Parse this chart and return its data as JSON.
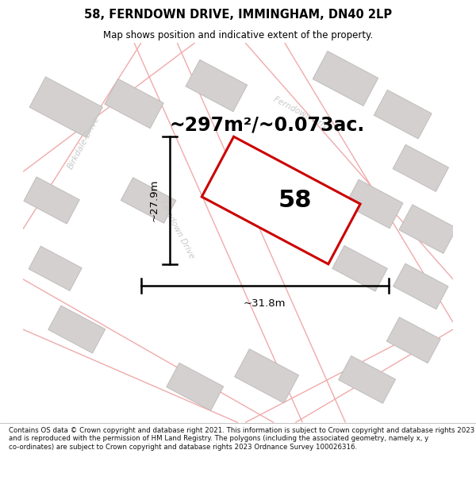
{
  "title": "58, FERNDOWN DRIVE, IMMINGHAM, DN40 2LP",
  "subtitle": "Map shows position and indicative extent of the property.",
  "area_text": "~297m²/~0.073ac.",
  "number_label": "58",
  "dim_width": "~31.8m",
  "dim_height": "~27.9m",
  "map_bg": "#eeecec",
  "building_color": "#d4d0d0",
  "building_edge": "#c0bcbc",
  "road_line_color": "#f0aaaa",
  "property_color": "#ffffff",
  "property_edge": "#cc0000",
  "dim_line_color": "#000000",
  "title_color": "#000000",
  "footer_color": "#111111",
  "street_label_color": "#c8c8c8",
  "footer_text": "Contains OS data © Crown copyright and database right 2021. This information is subject to Crown copyright and database rights 2023 and is reproduced with the permission of HM Land Registry. The polygons (including the associated geometry, namely x, y co-ordinates) are subject to Crown copyright and database rights 2023 Ordnance Survey 100026316.",
  "figsize": [
    6.0,
    6.25
  ],
  "dpi": 100,
  "title_fontsize": 10.5,
  "subtitle_fontsize": 8.5,
  "area_fontsize": 17,
  "number_fontsize": 22,
  "dim_fontsize": 9.5,
  "street_fontsize": 7.5,
  "footer_fontsize": 6.2
}
